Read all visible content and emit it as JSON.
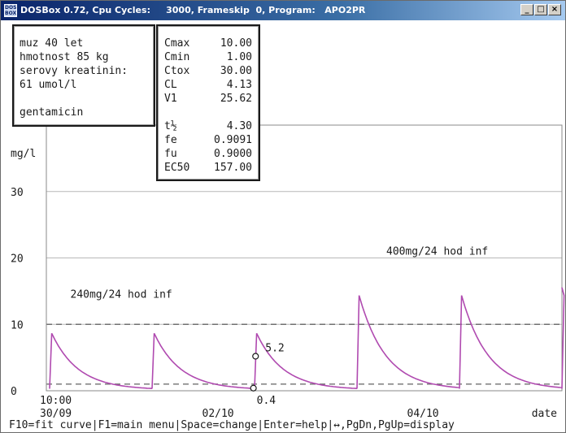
{
  "window": {
    "title": "DOSBox 0.72, Cpu Cycles:     3000, Frameskip  0, Program:   APO2PR",
    "icon_text": "DOS BOX",
    "minimize_label": "_",
    "maximize_label": "□",
    "close_label": "×"
  },
  "patient": {
    "lines": [
      "muz 40 let",
      "hmotnost 85 kg",
      "serovy kreatinin:",
      "61 umol/l"
    ],
    "drug": "gentamicin"
  },
  "params": [
    {
      "label": "Cmax",
      "value": "10.00"
    },
    {
      "label": "Cmin",
      "value": "1.00"
    },
    {
      "label": "Ctox",
      "value": "30.00"
    },
    {
      "label": "CL",
      "value": "4.13"
    },
    {
      "label": "V1",
      "value": "25.62"
    },
    {
      "label": "t½",
      "value": "4.30"
    },
    {
      "label": "fe",
      "value": "0.9091"
    },
    {
      "label": "fu",
      "value": "0.9000"
    },
    {
      "label": "EC50",
      "value": "157.00"
    }
  ],
  "colors": {
    "curve": "#b04ab0",
    "text": "#1a1a1a",
    "grid": "#b8b8b8",
    "dashed": "#707070"
  },
  "chart_data": {
    "type": "line",
    "ylabel": "mg/l",
    "xlabel": "date",
    "y_ticks": [
      0,
      10,
      20,
      30
    ],
    "ylim": [
      0,
      40
    ],
    "x_range_hours": [
      0,
      120
    ],
    "x_ticks": [
      {
        "label": "10:00",
        "sub": "30/09",
        "x": 0
      },
      {
        "label": "",
        "sub": "02/10",
        "x": 38
      },
      {
        "label": "",
        "sub": "04/10",
        "x": 86
      }
    ],
    "dashed_levels": [
      10.0,
      1.0
    ],
    "doses": [
      {
        "t": 0,
        "peak": 8.5,
        "tmax": 0.5
      },
      {
        "t": 24,
        "peak": 8.5,
        "tmax": 0.5
      },
      {
        "t": 48,
        "peak": 8.5,
        "tmax": 0.5
      },
      {
        "t": 72,
        "peak": 14.2,
        "tmax": 0.5
      },
      {
        "t": 96,
        "peak": 14.2,
        "tmax": 0.5
      },
      {
        "t": 120,
        "peak": 14.2,
        "tmax": 0.5
      }
    ],
    "half_life_h": 4.3,
    "samples": [
      {
        "t": 48.5,
        "c": 0.4,
        "label": "0.4"
      },
      {
        "t": 49.0,
        "c": 5.2,
        "label": "5.2"
      }
    ],
    "annotations": [
      {
        "text": "240mg/24 hod inf",
        "t": 6,
        "c": 14.5
      },
      {
        "text": "400mg/24 hod inf",
        "t": 80,
        "c": 21.0
      }
    ]
  },
  "statusbar": "F10=fit curve|F1=main menu|Space=change|Enter=help|↔,PgDn,PgUp=display"
}
